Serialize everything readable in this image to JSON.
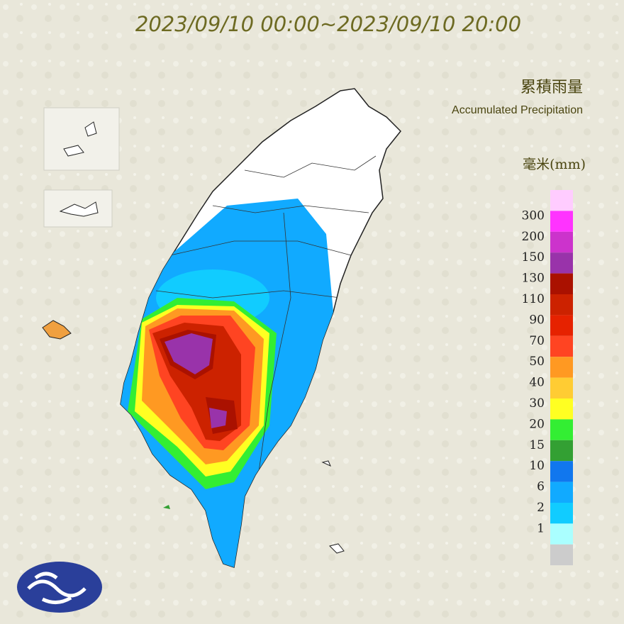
{
  "title": "2023/09/10 00:00~2023/09/10 20:00",
  "legend": {
    "title": "累積雨量",
    "subtitle": "Accumulated Precipitation",
    "unit": "毫米(mm)",
    "top_color": "#ffccff",
    "levels": [
      {
        "label": 300,
        "color": "#ff33ff"
      },
      {
        "label": 200,
        "color": "#cc33cc"
      },
      {
        "label": 150,
        "color": "#9933aa"
      },
      {
        "label": 130,
        "color": "#aa1100"
      },
      {
        "label": 110,
        "color": "#cc2200"
      },
      {
        "label": 90,
        "color": "#e62200"
      },
      {
        "label": 70,
        "color": "#ff4422"
      },
      {
        "label": 50,
        "color": "#ff9922"
      },
      {
        "label": 40,
        "color": "#ffcc33"
      },
      {
        "label": 30,
        "color": "#ffff22"
      },
      {
        "label": 20,
        "color": "#33ee33"
      },
      {
        "label": 15,
        "color": "#33a033"
      },
      {
        "label": 10,
        "color": "#1177ee"
      },
      {
        "label": 6,
        "color": "#11aaff"
      },
      {
        "label": 2,
        "color": "#11ccff"
      },
      {
        "label": 1,
        "color": "#aaffff"
      }
    ],
    "bottom_color": "#cccccc"
  }
}
